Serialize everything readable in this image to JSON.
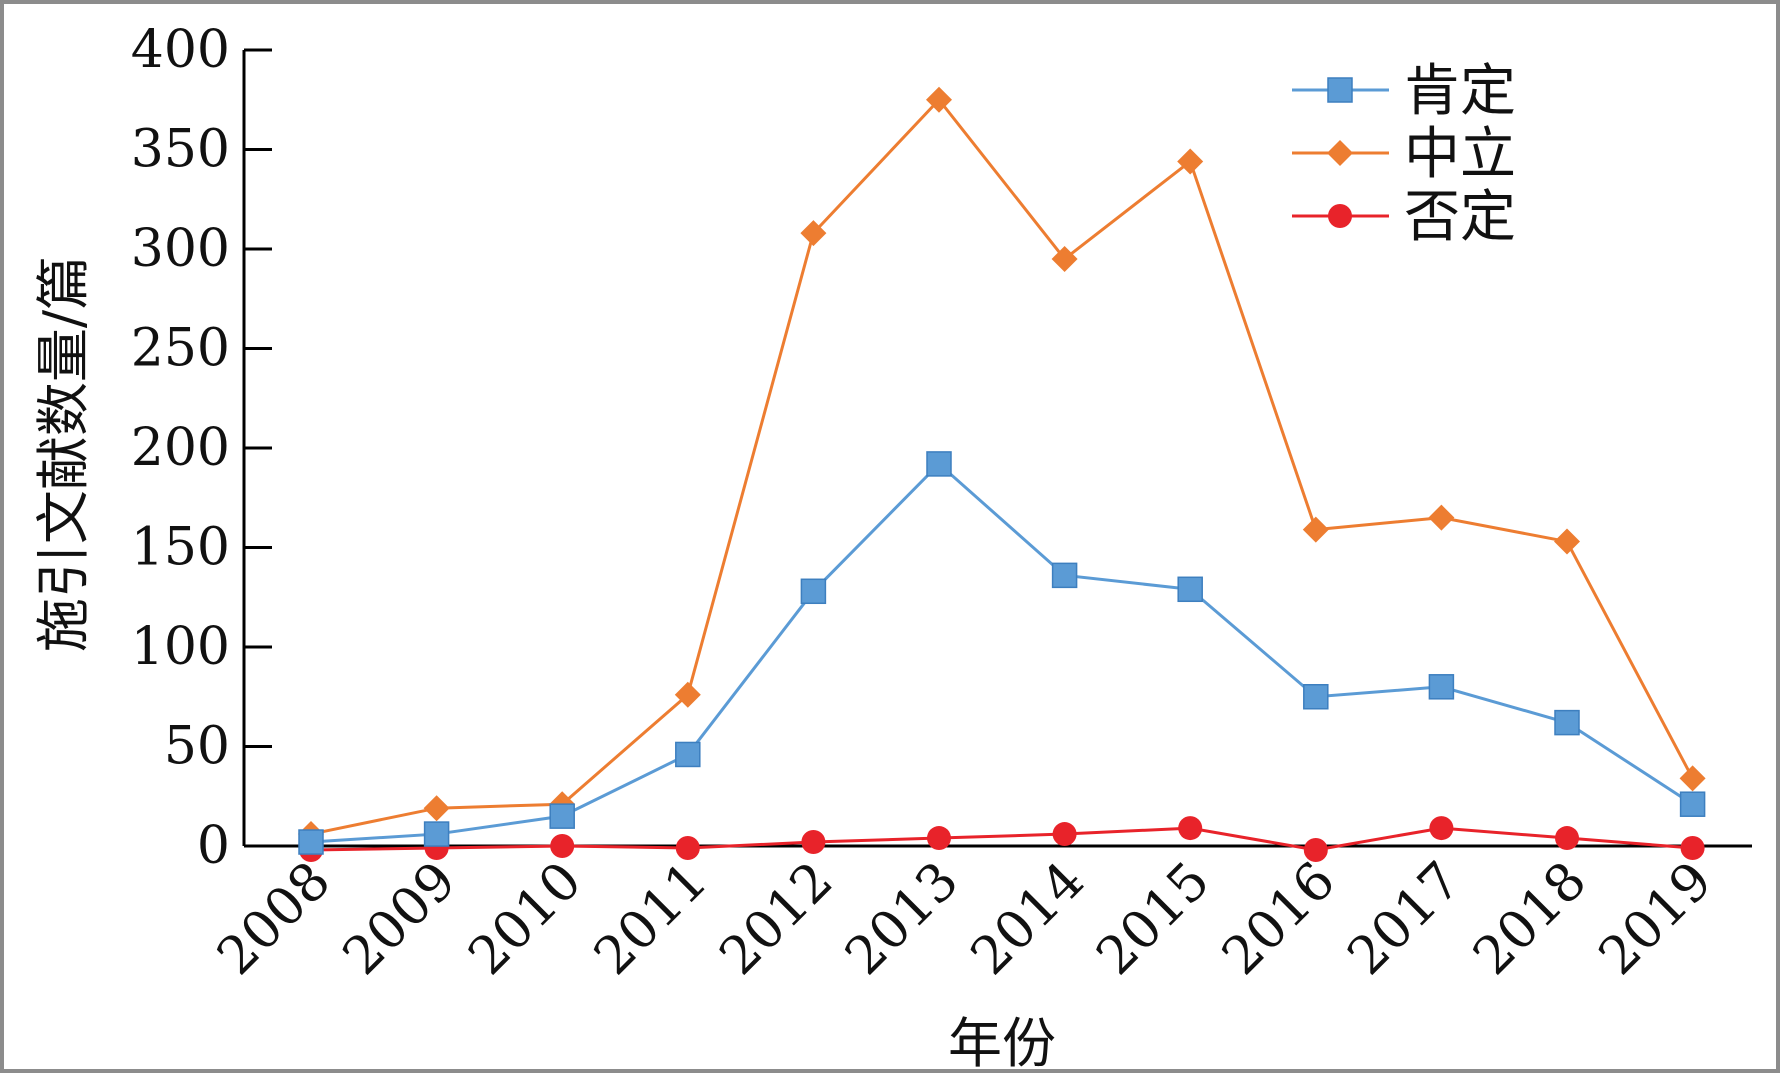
{
  "chart_data": {
    "type": "line",
    "title": "",
    "xlabel": "年份",
    "ylabel": "施引文献数量/篇",
    "categories": [
      "2008",
      "2009",
      "2010",
      "2011",
      "2012",
      "2013",
      "2014",
      "2015",
      "2016",
      "2017",
      "2018",
      "2019"
    ],
    "ylim": [
      0,
      400
    ],
    "yticks": [
      0,
      50,
      100,
      150,
      200,
      250,
      300,
      350,
      400
    ],
    "grid": false,
    "legend_position": "top-right",
    "series": [
      {
        "name": "肯定",
        "color": "#5b9bd5",
        "marker": "square",
        "values": [
          2,
          6,
          15,
          46,
          128,
          192,
          136,
          129,
          75,
          80,
          62,
          21
        ]
      },
      {
        "name": "中立",
        "color": "#ed7d31",
        "marker": "diamond",
        "values": [
          6,
          19,
          21,
          76,
          308,
          375,
          295,
          344,
          159,
          165,
          153,
          34
        ]
      },
      {
        "name": "否定",
        "color": "#e8232a",
        "marker": "circle",
        "values": [
          -2,
          -1,
          0,
          -1,
          2,
          4,
          6,
          9,
          -2,
          9,
          4,
          -1
        ]
      }
    ]
  }
}
